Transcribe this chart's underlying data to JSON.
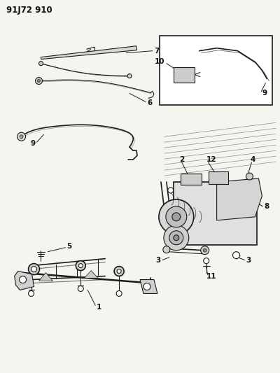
{
  "title_code": "91J72 910",
  "bg_color": "#f5f5f0",
  "line_color": "#1a1a1a",
  "label_color": "#111111",
  "title_fontsize": 8.5,
  "label_fontsize": 7.5,
  "fig_width": 4.0,
  "fig_height": 5.33,
  "dpi": 100
}
